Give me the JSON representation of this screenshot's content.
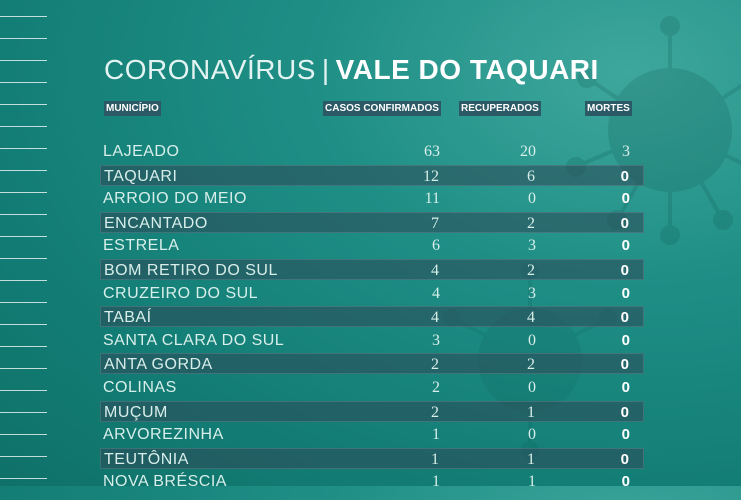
{
  "title": {
    "left": "CORONAVÍRUS",
    "separator": "|",
    "right": "VALE DO TAQUARI"
  },
  "headers": {
    "municipio": "MUNICÍPIO",
    "casos": "CASOS CONFIRMADOS",
    "recuperados": "RECUPERADOS",
    "mortes": "MORTES"
  },
  "rows": [
    {
      "name": "LAJEADO",
      "casos": "63",
      "recuperados": "20",
      "mortes": "3"
    },
    {
      "name": "TAQUARI",
      "casos": "12",
      "recuperados": "6",
      "mortes": "0"
    },
    {
      "name": "ARROIO DO MEIO",
      "casos": "11",
      "recuperados": "0",
      "mortes": "0"
    },
    {
      "name": "ENCANTADO",
      "casos": "7",
      "recuperados": "2",
      "mortes": "0"
    },
    {
      "name": "ESTRELA",
      "casos": "6",
      "recuperados": "3",
      "mortes": "0"
    },
    {
      "name": "BOM RETIRO DO SUL",
      "casos": "4",
      "recuperados": "2",
      "mortes": "0"
    },
    {
      "name": "CRUZEIRO DO SUL",
      "casos": "4",
      "recuperados": "3",
      "mortes": "0"
    },
    {
      "name": "TABAÍ",
      "casos": "4",
      "recuperados": "4",
      "mortes": "0"
    },
    {
      "name": "SANTA CLARA DO SUL",
      "casos": "3",
      "recuperados": "0",
      "mortes": "0"
    },
    {
      "name": "ANTA GORDA",
      "casos": "2",
      "recuperados": "2",
      "mortes": "0"
    },
    {
      "name": "COLINAS",
      "casos": "2",
      "recuperados": "0",
      "mortes": "0"
    },
    {
      "name": "MUÇUM",
      "casos": "2",
      "recuperados": "1",
      "mortes": "0"
    },
    {
      "name": "ARVOREZINHA",
      "casos": "1",
      "recuperados": "0",
      "mortes": "0"
    },
    {
      "name": "TEUTÔNIA",
      "casos": "1",
      "recuperados": "1",
      "mortes": "0"
    },
    {
      "name": "NOVA BRÉSCIA",
      "casos": "1",
      "recuperados": "1",
      "mortes": "0"
    }
  ]
}
